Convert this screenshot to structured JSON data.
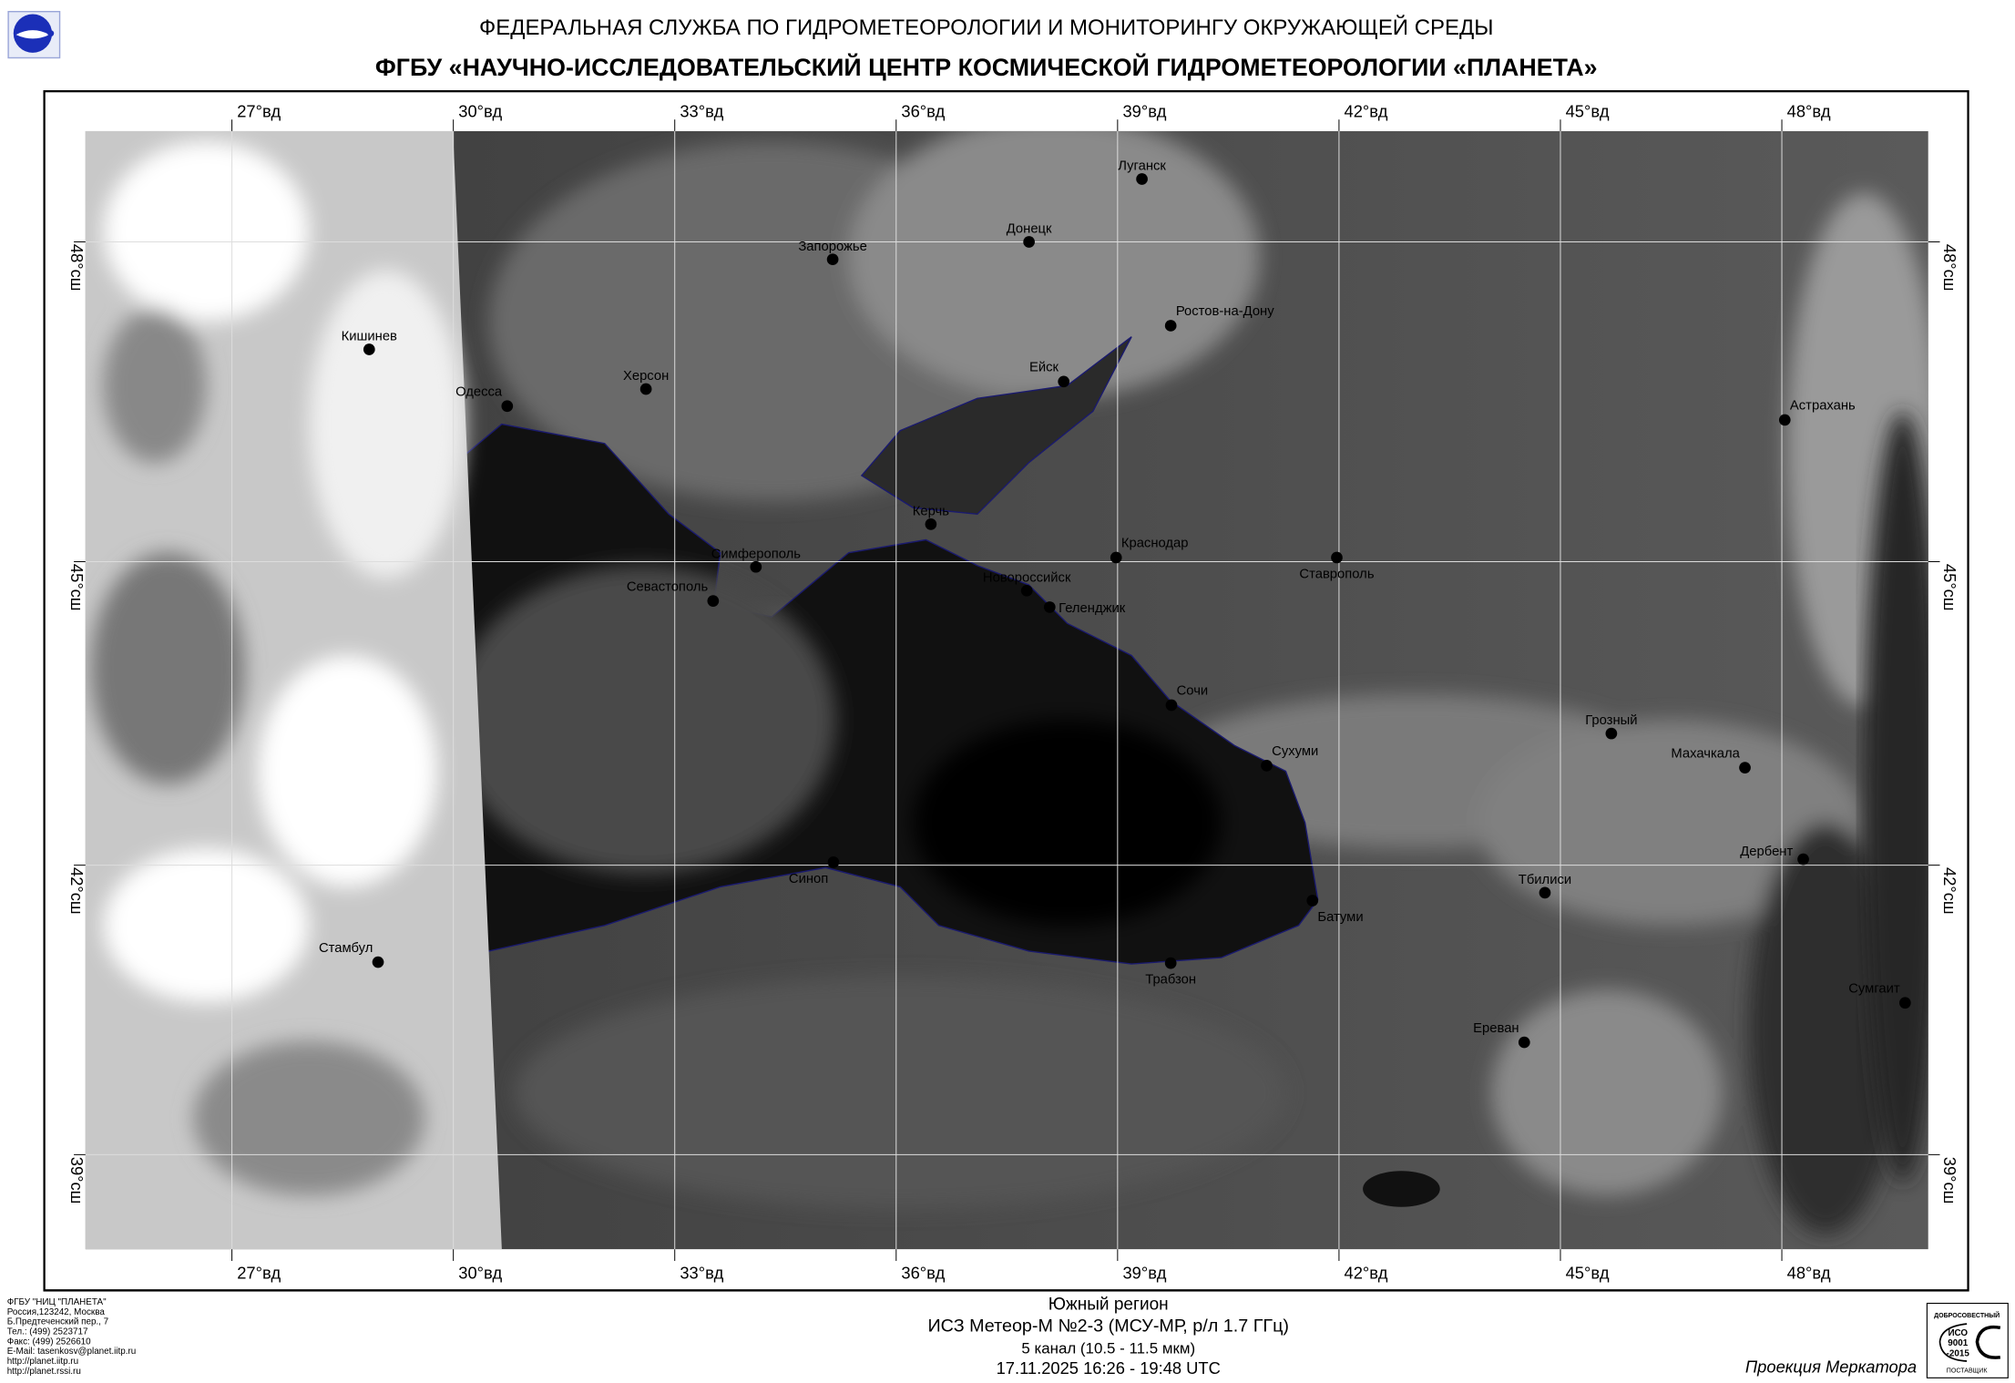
{
  "header": {
    "agency": "ФЕДЕРАЛЬНАЯ СЛУЖБА ПО ГИДРОМЕТЕОРОЛОГИИ И МОНИТОРИНГУ ОКРУЖАЮЩЕЙ СРЕДЫ",
    "institute": "ФГБУ «НАУЧНО-ИССЛЕДОВАТЕЛЬСКИЙ ЦЕНТР КОСМИЧЕСКОЙ ГИДРОМЕТЕОРОЛОГИИ «ПЛАНЕТА»",
    "logo": "planeta-logo"
  },
  "map": {
    "projection_type": "mercator",
    "longitudes": [
      27,
      30,
      33,
      36,
      39,
      42,
      45,
      48
    ],
    "latitudes": [
      48,
      45,
      42,
      39
    ],
    "lon_suffix": "°вд",
    "lat_suffix": "°сш",
    "line_color": "#1a1a6e",
    "cities": [
      {
        "name": "Луганск",
        "lat": 48.57,
        "lon": 39.33,
        "label": "above"
      },
      {
        "name": "Донецк",
        "lat": 48.0,
        "lon": 37.8,
        "label": "above"
      },
      {
        "name": "Запорожье",
        "lat": 47.84,
        "lon": 35.14,
        "label": "above"
      },
      {
        "name": "Кишинев",
        "lat": 47.01,
        "lon": 28.86,
        "label": "above"
      },
      {
        "name": "Ростов-на-Дону",
        "lat": 47.23,
        "lon": 39.72,
        "label": "above-right"
      },
      {
        "name": "Ейск",
        "lat": 46.71,
        "lon": 38.27,
        "label": "above-left"
      },
      {
        "name": "Херсон",
        "lat": 46.64,
        "lon": 32.61,
        "label": "above"
      },
      {
        "name": "Одесса",
        "lat": 46.48,
        "lon": 30.73,
        "label": "above-left"
      },
      {
        "name": "Астрахань",
        "lat": 46.35,
        "lon": 48.04,
        "label": "above-right"
      },
      {
        "name": "Керчь",
        "lat": 45.36,
        "lon": 36.47,
        "label": "above"
      },
      {
        "name": "Симферополь",
        "lat": 44.95,
        "lon": 34.1,
        "label": "above"
      },
      {
        "name": "Краснодар",
        "lat": 45.04,
        "lon": 38.98,
        "label": "above-right"
      },
      {
        "name": "Ставрополь",
        "lat": 45.04,
        "lon": 41.97,
        "label": "below"
      },
      {
        "name": "Севастополь",
        "lat": 44.62,
        "lon": 33.52,
        "label": "above-left"
      },
      {
        "name": "Новороссийск",
        "lat": 44.72,
        "lon": 37.77,
        "label": "above"
      },
      {
        "name": "Геленджик",
        "lat": 44.56,
        "lon": 38.08,
        "label": "right"
      },
      {
        "name": "Сочи",
        "lat": 43.6,
        "lon": 39.73,
        "label": "above-right"
      },
      {
        "name": "Сухуми",
        "lat": 43.0,
        "lon": 41.02,
        "label": "above-right"
      },
      {
        "name": "Грозный",
        "lat": 43.32,
        "lon": 45.69,
        "label": "above"
      },
      {
        "name": "Махачкала",
        "lat": 42.98,
        "lon": 47.5,
        "label": "above-left"
      },
      {
        "name": "Дербент",
        "lat": 42.06,
        "lon": 48.29,
        "label": "left"
      },
      {
        "name": "Синоп",
        "lat": 42.03,
        "lon": 35.15,
        "label": "below-left"
      },
      {
        "name": "Стамбул",
        "lat": 41.01,
        "lon": 28.98,
        "label": "above-left"
      },
      {
        "name": "Батуми",
        "lat": 41.64,
        "lon": 41.64,
        "label": "below-right"
      },
      {
        "name": "Тбилиси",
        "lat": 41.72,
        "lon": 44.79,
        "label": "above"
      },
      {
        "name": "Трабзон",
        "lat": 41.0,
        "lon": 39.72,
        "label": "below"
      },
      {
        "name": "Сумгаит",
        "lat": 40.59,
        "lon": 49.67,
        "label": "above-left"
      },
      {
        "name": "Ереван",
        "lat": 40.18,
        "lon": 44.51,
        "label": "above-left"
      }
    ]
  },
  "footer": {
    "region": "Южный регион",
    "satellite": "ИСЗ Метеор-М №2-3 (МСУ-МР, р/л 1.7 ГГц)",
    "channel": "5 канал (10.5 - 11.5 мкм)",
    "datetime": "17.11.2025  16:26 - 19:48 UTC",
    "projection": "Проекция Меркатора",
    "contacts": [
      "ФГБУ \"НИЦ \"ПЛАНЕТА\"",
      "Россия,123242, Москва",
      "Б.Предтеченский пер., 7",
      "Тел.:  (499) 2523717",
      "Факс: (499) 2526610",
      "E-Mail: tasenkosv@planet.iitp.ru",
      "http://planet.iitp.ru",
      "http://planet.rssi.ru"
    ],
    "iso_badge": {
      "top": "ДОБРОСОВЕСТНЫЙ",
      "line1": "ИСО",
      "line2": "9001",
      "line3": "-2015",
      "bottom": "ПОСТАВЩИК"
    }
  }
}
